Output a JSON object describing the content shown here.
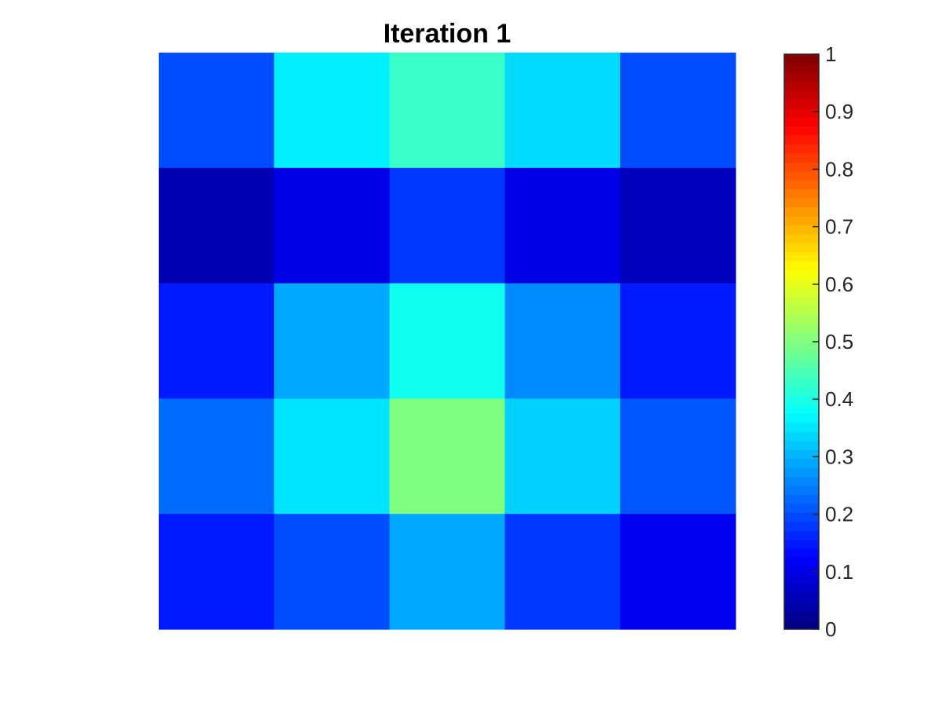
{
  "chart_data": {
    "type": "heatmap",
    "title": "Iteration 1",
    "xlabel": "",
    "ylabel": "",
    "rows": 5,
    "cols": 5,
    "values": [
      [
        0.2,
        0.36,
        0.43,
        0.34,
        0.2
      ],
      [
        0.05,
        0.1,
        0.18,
        0.1,
        0.06
      ],
      [
        0.15,
        0.29,
        0.39,
        0.26,
        0.15
      ],
      [
        0.23,
        0.35,
        0.5,
        0.33,
        0.21
      ],
      [
        0.15,
        0.2,
        0.29,
        0.18,
        0.11
      ]
    ],
    "colormap": "jet",
    "clim": [
      0,
      1
    ],
    "axes_visible": false,
    "colorbar": {
      "placement": "right",
      "ticks": [
        0,
        0.1,
        0.2,
        0.3,
        0.4,
        0.5,
        0.6,
        0.7,
        0.8,
        0.9,
        1
      ],
      "tick_labels": [
        "0",
        "0.1",
        "0.2",
        "0.3",
        "0.4",
        "0.5",
        "0.6",
        "0.7",
        "0.8",
        "0.9",
        "1"
      ]
    }
  }
}
